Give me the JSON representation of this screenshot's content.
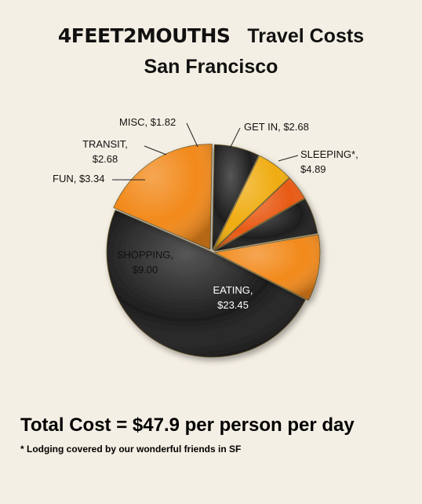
{
  "header": {
    "brand": "4FEET2MOUTHS",
    "title": "Travel Costs",
    "subtitle": "San Francisco"
  },
  "chart_data": {
    "type": "pie",
    "unit": "$",
    "slices": [
      {
        "category": "EATING",
        "value": 23.45,
        "label_lines": [
          "EATING,",
          "$23.45"
        ],
        "color": "#1e1e1e"
      },
      {
        "category": "SHOPPING",
        "value": 9.0,
        "label_lines": [
          "SHOPPING,",
          "$9.00"
        ],
        "color": "#f2891a"
      },
      {
        "category": "FUN",
        "value": 3.34,
        "label_lines": [
          "FUN, $3.34"
        ],
        "color": "#1e1e1e"
      },
      {
        "category": "TRANSIT",
        "value": 2.68,
        "label_lines": [
          "TRANSIT,",
          "$2.68"
        ],
        "color": "#f0ac10"
      },
      {
        "category": "MISC",
        "value": 1.82,
        "label_lines": [
          "MISC, $1.82"
        ],
        "color": "#e85a14"
      },
      {
        "category": "GET IN",
        "value": 2.68,
        "label_lines": [
          "GET IN, $2.68"
        ],
        "color": "#1e1e1e"
      },
      {
        "category": "SLEEPING*",
        "value": 4.89,
        "label_lines": [
          "SLEEPING*,",
          "$4.89"
        ],
        "color": "#f2891a"
      }
    ]
  },
  "summary": {
    "total": "Total Cost = $47.9 per person per day",
    "footnote": "* Lodging covered by our wonderful friends in SF"
  }
}
